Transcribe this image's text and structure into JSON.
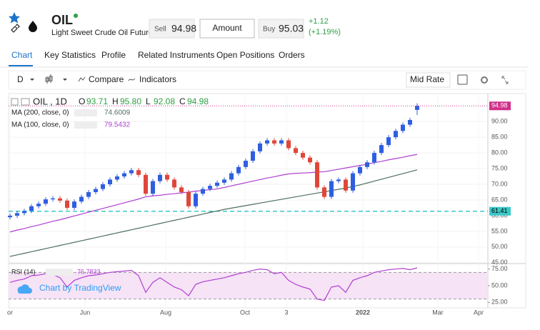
{
  "header": {
    "symbol": "OIL",
    "name": "Light Sweet Crude Oil Futures",
    "sell_label": "Sell",
    "sell": "94.98",
    "amount": "Amount",
    "buy_label": "Buy",
    "buy": "95.03",
    "change": "+1.12",
    "change_pct": "(+1.19%)"
  },
  "tabs": [
    "Chart",
    "Key Statistics",
    "Profile",
    "Related Instruments",
    "Open Positions",
    "Orders"
  ],
  "toolbar": {
    "interval": "D",
    "compare": "Compare",
    "indicators": "Indicators",
    "rate": "Mid Rate"
  },
  "chart": {
    "type": "candlestick",
    "title": "OIL , 1D",
    "ohlc_names": [
      "O",
      "H",
      "L",
      "C"
    ],
    "ohlc_labels": [
      "93.71",
      "95.80",
      "92.08",
      "94.98"
    ],
    "ohlc": [
      [
        59.5,
        60.7,
        58.8,
        60.0
      ],
      [
        60.0,
        61.5,
        59.3,
        60.8
      ],
      [
        60.8,
        62.2,
        60.1,
        61.5
      ],
      [
        61.5,
        63.7,
        60.8,
        63.0
      ],
      [
        63.0,
        64.5,
        62.3,
        63.8
      ],
      [
        63.8,
        65.9,
        63.1,
        65.2
      ],
      [
        65.2,
        66.2,
        64.5,
        65.5
      ],
      [
        65.5,
        66.2,
        64.1,
        64.8
      ],
      [
        64.8,
        65.5,
        61.8,
        62.5
      ],
      [
        62.5,
        65.2,
        61.8,
        64.5
      ],
      [
        64.5,
        66.7,
        63.8,
        66.0
      ],
      [
        66.0,
        68.2,
        65.3,
        67.5
      ],
      [
        67.5,
        69.2,
        66.8,
        68.5
      ],
      [
        68.5,
        70.7,
        67.8,
        70.0
      ],
      [
        70.0,
        72.2,
        69.3,
        71.5
      ],
      [
        71.5,
        73.2,
        70.8,
        72.5
      ],
      [
        72.5,
        74.2,
        71.8,
        73.5
      ],
      [
        73.5,
        75.2,
        72.8,
        74.5
      ],
      [
        74.5,
        75.2,
        72.3,
        73.0
      ],
      [
        73.0,
        73.7,
        66.3,
        67.0
      ],
      [
        67.0,
        71.7,
        66.3,
        71.0
      ],
      [
        71.0,
        73.7,
        70.3,
        73.0
      ],
      [
        73.0,
        73.7,
        70.8,
        71.5
      ],
      [
        71.5,
        72.2,
        68.3,
        69.0
      ],
      [
        69.0,
        69.7,
        66.8,
        67.5
      ],
      [
        67.5,
        68.2,
        62.3,
        63.0
      ],
      [
        63.0,
        67.7,
        62.3,
        67.0
      ],
      [
        67.0,
        69.2,
        66.3,
        68.5
      ],
      [
        68.5,
        70.2,
        67.8,
        69.5
      ],
      [
        69.5,
        71.2,
        68.8,
        70.5
      ],
      [
        70.5,
        72.2,
        69.8,
        71.5
      ],
      [
        71.5,
        74.2,
        70.8,
        73.5
      ],
      [
        73.5,
        76.2,
        72.8,
        75.5
      ],
      [
        75.5,
        78.2,
        74.8,
        77.5
      ],
      [
        77.5,
        81.2,
        76.8,
        80.5
      ],
      [
        80.5,
        83.7,
        79.8,
        83.0
      ],
      [
        83.0,
        84.7,
        82.3,
        84.0
      ],
      [
        84.0,
        84.7,
        82.3,
        83.0
      ],
      [
        83.0,
        84.7,
        82.3,
        84.0
      ],
      [
        84.0,
        84.7,
        80.8,
        81.5
      ],
      [
        81.5,
        82.2,
        79.3,
        80.0
      ],
      [
        80.0,
        80.7,
        77.8,
        78.5
      ],
      [
        78.5,
        79.2,
        76.3,
        77.0
      ],
      [
        77.0,
        77.7,
        68.3,
        69.0
      ],
      [
        69.0,
        69.7,
        65.3,
        66.0
      ],
      [
        66.0,
        71.7,
        65.3,
        71.0
      ],
      [
        71.0,
        72.2,
        70.3,
        71.5
      ],
      [
        71.5,
        72.2,
        67.3,
        68.0
      ],
      [
        68.0,
        74.2,
        67.3,
        73.5
      ],
      [
        73.5,
        76.2,
        72.8,
        75.5
      ],
      [
        75.5,
        77.7,
        74.8,
        77.0
      ],
      [
        77.0,
        80.7,
        76.3,
        80.0
      ],
      [
        80.0,
        83.2,
        79.3,
        82.5
      ],
      [
        82.5,
        85.7,
        81.8,
        85.0
      ],
      [
        85.0,
        87.7,
        84.3,
        87.0
      ],
      [
        87.0,
        89.7,
        86.3,
        89.0
      ],
      [
        89.0,
        91.2,
        88.3,
        90.5
      ],
      [
        93.71,
        95.8,
        92.08,
        94.98
      ]
    ],
    "up_color": "#2f5fe0",
    "down_color": "#e0463a",
    "series": [
      {
        "name": "MA (200, close, 0)",
        "last": "74.6009",
        "color": "#4f6e5f",
        "values": [
          47.0,
          47.5,
          48.0,
          48.5,
          49.0,
          49.5,
          50.0,
          50.5,
          51.0,
          51.5,
          52.0,
          52.5,
          53.0,
          53.5,
          54.0,
          54.5,
          55.0,
          55.5,
          56.0,
          56.5,
          57.0,
          57.5,
          58.0,
          58.5,
          59.0,
          59.5,
          60.0,
          60.5,
          61.0,
          61.5,
          62.0,
          62.4,
          62.8,
          63.2,
          63.6,
          64.0,
          64.4,
          64.8,
          65.2,
          65.6,
          66.0,
          66.4,
          66.8,
          67.2,
          67.6,
          68.0,
          68.4,
          68.8,
          69.3,
          69.8,
          70.4,
          71.0,
          71.6,
          72.2,
          72.8,
          73.4,
          74.0,
          74.6
        ]
      },
      {
        "name": "MA (100, close, 0)",
        "last": "79.5432",
        "color": "#b03fd0",
        "values": [
          54.8,
          55.4,
          55.9,
          56.5,
          57.0,
          57.6,
          58.2,
          58.7,
          59.3,
          59.9,
          60.5,
          61.1,
          61.7,
          62.3,
          62.9,
          63.5,
          64.1,
          64.7,
          65.3,
          66.0,
          66.3,
          66.5,
          66.8,
          67.0,
          67.3,
          67.5,
          67.8,
          68.0,
          68.3,
          68.5,
          69.0,
          69.5,
          70.0,
          70.5,
          71.0,
          71.5,
          72.0,
          72.4,
          72.9,
          73.3,
          73.5,
          73.6,
          73.7,
          73.9,
          74.0,
          74.4,
          74.8,
          75.2,
          75.6,
          76.0,
          76.4,
          76.9,
          77.3,
          77.8,
          78.2,
          78.6,
          79.1,
          79.5
        ]
      }
    ],
    "level": 61.41,
    "level_label": "61.41",
    "level_color": "#3cc8c8",
    "ylim": [
      44.5,
      98
    ],
    "yticks": [
      {
        "value": 45,
        "label": "45.00"
      },
      {
        "value": 50,
        "label": "50.00"
      },
      {
        "value": 55,
        "label": "55.00"
      },
      {
        "value": 60,
        "label": "60.00"
      },
      {
        "value": 65,
        "label": "65.00"
      },
      {
        "value": 70,
        "label": "70.00"
      },
      {
        "value": 75,
        "label": "75.00"
      },
      {
        "value": 80,
        "label": "80.00"
      },
      {
        "value": 85,
        "label": "85.00"
      },
      {
        "value": 90,
        "label": "90.00"
      }
    ],
    "rsi": {
      "name": "RSI (14)",
      "last": "76.7833",
      "color": "#b03fd0",
      "band": [
        30,
        70
      ],
      "ylim": [
        20,
        80
      ],
      "yticks": [
        {
          "value": 25,
          "label": "25.00"
        },
        {
          "value": 50,
          "label": "50.00"
        },
        {
          "value": 75,
          "label": "75.00"
        }
      ],
      "values": [
        55,
        58,
        60,
        65,
        66,
        68,
        67,
        62,
        48,
        58,
        62,
        65,
        66,
        68,
        70,
        71,
        72,
        73,
        65,
        40,
        55,
        62,
        55,
        48,
        44,
        35,
        52,
        56,
        58,
        60,
        62,
        65,
        68,
        70,
        73,
        75,
        74,
        68,
        70,
        58,
        52,
        48,
        45,
        30,
        28,
        48,
        50,
        40,
        58,
        62,
        65,
        70,
        72,
        74,
        75,
        76,
        74,
        76.7833
      ]
    },
    "xtick_labels": [
      "or",
      "Jun",
      "Aug",
      "Oct",
      "3",
      "2022",
      "Mar",
      "Apr"
    ],
    "watermark": "Chart by TradingView"
  }
}
